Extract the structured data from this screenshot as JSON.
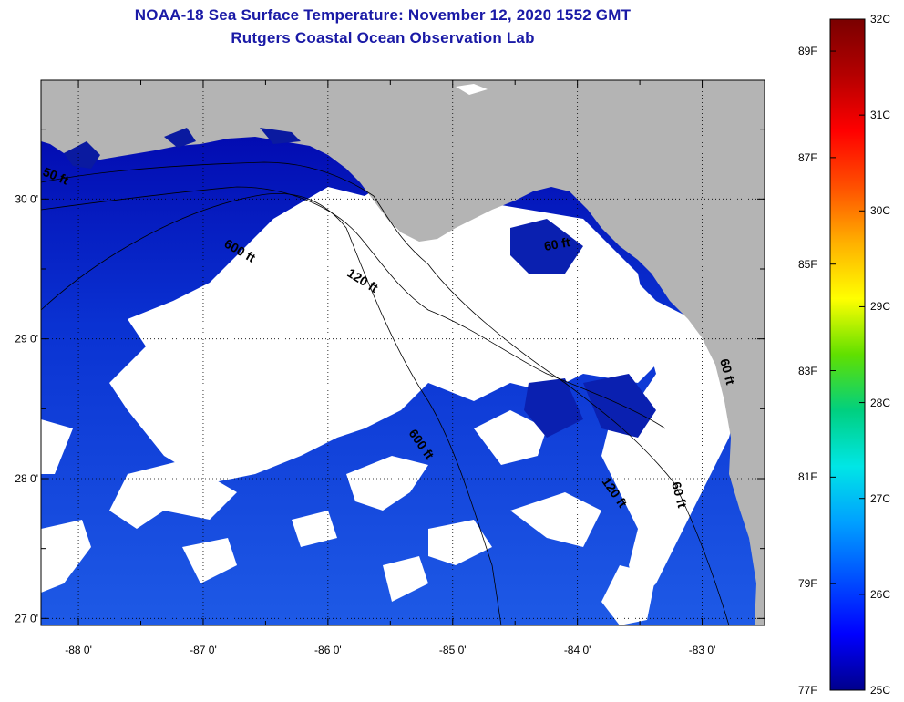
{
  "title": {
    "line1": "NOAA-18 Sea Surface Temperature:  November 12, 2020 1552 GMT",
    "line2": "Rutgers Coastal Ocean Observation Lab"
  },
  "map": {
    "lon_range": [
      -88.3,
      -82.5
    ],
    "lat_range": [
      26.95,
      30.85
    ],
    "lon_ticks": [
      {
        "value": -88,
        "label": "-88 0'"
      },
      {
        "value": -87,
        "label": "-87 0'"
      },
      {
        "value": -86,
        "label": "-86 0'"
      },
      {
        "value": -85,
        "label": "-85 0'"
      },
      {
        "value": -84,
        "label": "-84 0'"
      },
      {
        "value": -83,
        "label": "-83 0'"
      }
    ],
    "lat_ticks": [
      {
        "value": 30,
        "label": "30 0'"
      },
      {
        "value": 29,
        "label": "29 0'"
      },
      {
        "value": 28,
        "label": "28 0'"
      },
      {
        "value": 27,
        "label": "27 0'"
      }
    ],
    "contour_labels": [
      "50 ft",
      "600 ft",
      "120 ft",
      "60 ft",
      "600 ft",
      "120 ft",
      "60 ft",
      "60 ft"
    ],
    "colors": {
      "land": "#b4b4b4",
      "cloud": "#ffffff",
      "water_cold": "#0000a8",
      "water_mid": "#0a32d2",
      "water_warm": "#1e5ae6"
    }
  },
  "colorbar": {
    "celsius_labels": [
      "32C",
      "31C",
      "30C",
      "29C",
      "28C",
      "27C",
      "26C",
      "25C"
    ],
    "fahrenheit_labels": [
      "89F",
      "87F",
      "85F",
      "83F",
      "81F",
      "79F",
      "77F"
    ],
    "colors": [
      "#00008c",
      "#0000ff",
      "#0050ff",
      "#00a0ff",
      "#00e6e6",
      "#00d080",
      "#60e000",
      "#ffff00",
      "#ffb000",
      "#ff5000",
      "#ff0000",
      "#b40000",
      "#7a0000"
    ]
  }
}
